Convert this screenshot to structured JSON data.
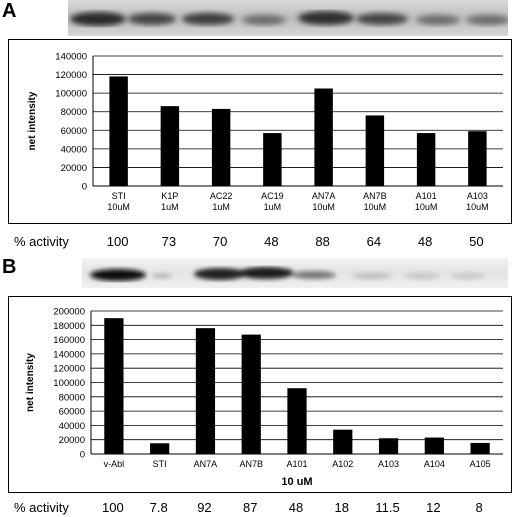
{
  "panel_a": {
    "letter": "A",
    "activity_label": "% activity",
    "activity_values": [
      "100",
      "73",
      "70",
      "48",
      "88",
      "64",
      "48",
      "50"
    ]
  },
  "panel_b": {
    "letter": "B",
    "activity_label": "% activity",
    "activity_values": [
      "100",
      "7.8",
      "92",
      "87",
      "48",
      "18",
      "11.5",
      "12",
      "8"
    ]
  },
  "chart_data": [
    {
      "type": "bar",
      "ylabel": "net intensity",
      "xlabel": "",
      "ylim": [
        0,
        140000
      ],
      "yticks": [
        0,
        20000,
        40000,
        60000,
        80000,
        100000,
        120000,
        140000
      ],
      "grid": true,
      "categories": [
        [
          "STI",
          "10uM"
        ],
        [
          "K1P",
          "1uM"
        ],
        [
          "AC22",
          "1uM"
        ],
        [
          "AC19",
          "1uM"
        ],
        [
          "AN7A",
          "10uM"
        ],
        [
          "AN7B",
          "10uM"
        ],
        [
          "A101",
          "10uM"
        ],
        [
          "A103",
          "10uM"
        ]
      ],
      "values": [
        118000,
        86000,
        83000,
        57000,
        105000,
        76000,
        57000,
        59000
      ],
      "bar_color": "#000000"
    },
    {
      "type": "bar",
      "ylabel": "net intensity",
      "xlabel": "10 uM",
      "ylim": [
        0,
        200000
      ],
      "yticks": [
        0,
        20000,
        40000,
        60000,
        80000,
        100000,
        120000,
        140000,
        160000,
        180000,
        200000
      ],
      "grid": true,
      "categories": [
        [
          "v-Abl"
        ],
        [
          "STI"
        ],
        [
          "AN7A"
        ],
        [
          "AN7B"
        ],
        [
          "A101"
        ],
        [
          "A102"
        ],
        [
          "A103"
        ],
        [
          "A104"
        ],
        [
          "A105"
        ]
      ],
      "values": [
        190000,
        15000,
        176000,
        167000,
        92000,
        34000,
        22000,
        23000,
        15500
      ],
      "bar_color": "#000000"
    }
  ]
}
